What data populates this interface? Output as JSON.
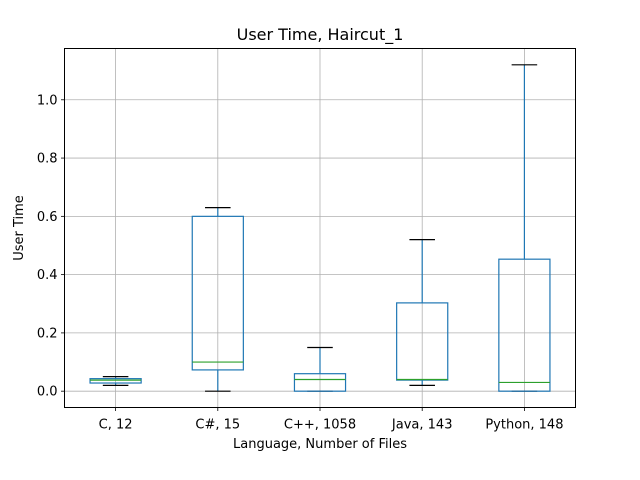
{
  "chart_data": {
    "type": "box",
    "title": "User Time, Haircut_1",
    "xlabel": "Language, Number of Files",
    "ylabel": "User Time",
    "grid": true,
    "ylim": [
      -0.056,
      1.176
    ],
    "yticks": [
      0.0,
      0.2,
      0.4,
      0.6,
      0.8,
      1.0
    ],
    "ytick_labels": [
      "0.0",
      "0.2",
      "0.4",
      "0.6",
      "0.8",
      "1.0"
    ],
    "categories": [
      "C, 12",
      "C#, 15",
      "C++, 1058",
      "Java, 143",
      "Python, 148"
    ],
    "boxes": [
      {
        "whisker_low": 0.02,
        "q1": 0.028,
        "median": 0.038,
        "q3": 0.043,
        "whisker_high": 0.05
      },
      {
        "whisker_low": 0.0,
        "q1": 0.073,
        "median": 0.1,
        "q3": 0.6,
        "whisker_high": 0.63
      },
      {
        "whisker_low": 0.0,
        "q1": 0.0,
        "median": 0.04,
        "q3": 0.06,
        "whisker_high": 0.15
      },
      {
        "whisker_low": 0.02,
        "q1": 0.038,
        "median": 0.04,
        "q3": 0.303,
        "whisker_high": 0.52
      },
      {
        "whisker_low": 0.0,
        "q1": 0.0,
        "median": 0.03,
        "q3": 0.453,
        "whisker_high": 1.12
      }
    ],
    "colors": {
      "box": "#1f77b4",
      "median": "#2ca02c",
      "whisker_cap": "#000000",
      "grid": "#b0b0b0"
    }
  }
}
